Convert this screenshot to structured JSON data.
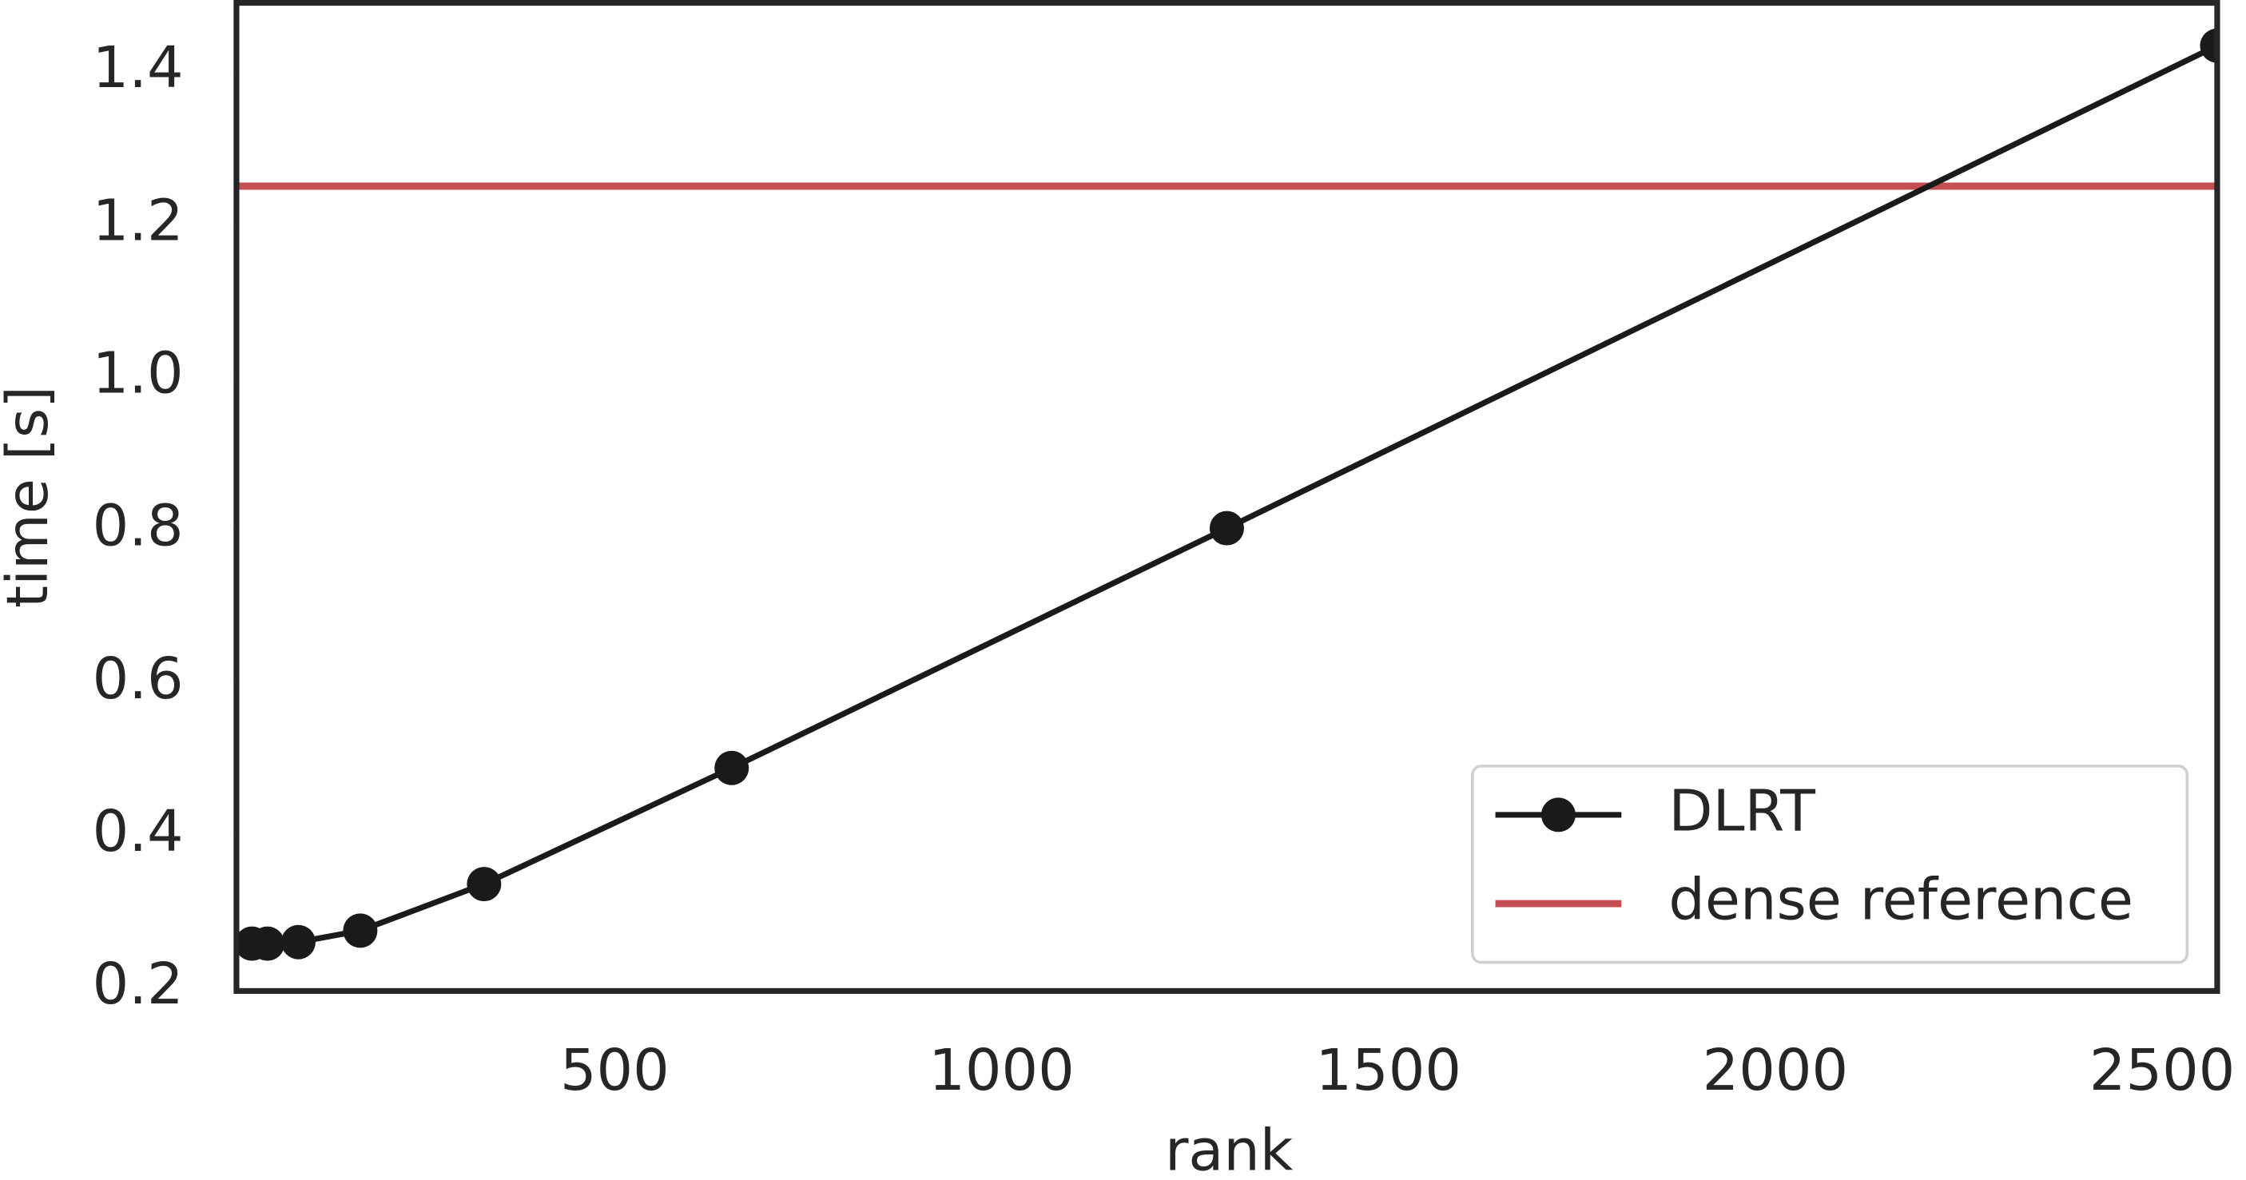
{
  "chart_data": {
    "type": "line",
    "xlabel": "rank",
    "ylabel": "time [s]",
    "x": [
      20,
      40,
      80,
      160,
      320,
      640,
      1280,
      2560
    ],
    "series": [
      {
        "name": "DLRT",
        "color": "#1a1a1a",
        "values": [
          0.258,
          0.258,
          0.26,
          0.275,
          0.336,
          0.488,
          0.802,
          1.434
        ]
      }
    ],
    "reference_lines": [
      {
        "name": "dense reference",
        "color": "#c44e52",
        "value": 1.25
      }
    ],
    "xlim": [
      0,
      2560
    ],
    "xticks": [
      500,
      1000,
      1500,
      2000,
      2500
    ],
    "ylim": [
      0.196,
      1.49
    ],
    "yticks": [
      0.2,
      0.4,
      0.6,
      0.8,
      1.0,
      1.2,
      1.4
    ],
    "legend": "lower right"
  }
}
